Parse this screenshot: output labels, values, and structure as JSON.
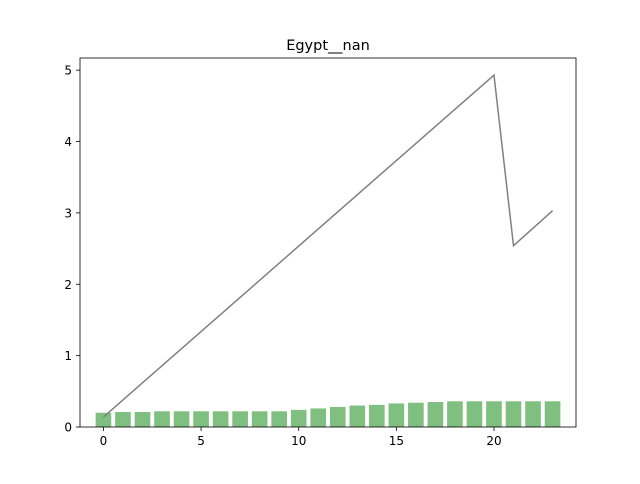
{
  "chart_data": {
    "type": "bar",
    "title": "Egypt__nan",
    "xlabel": "",
    "ylabel": "",
    "xlim": [
      -1.2,
      24.2
    ],
    "ylim": [
      0,
      5.17
    ],
    "x_ticks": [
      0,
      5,
      10,
      15,
      20
    ],
    "y_ticks": [
      0,
      1,
      2,
      3,
      4,
      5
    ],
    "grid": false,
    "series": [
      {
        "kind": "bar",
        "color": "#7fbf7f",
        "x": [
          0,
          1,
          2,
          3,
          4,
          5,
          6,
          7,
          8,
          9,
          10,
          11,
          12,
          13,
          14,
          15,
          16,
          17,
          18,
          19,
          20,
          21,
          22,
          23
        ],
        "values": [
          0.2,
          0.21,
          0.21,
          0.22,
          0.22,
          0.22,
          0.22,
          0.22,
          0.22,
          0.22,
          0.24,
          0.26,
          0.28,
          0.3,
          0.31,
          0.33,
          0.34,
          0.35,
          0.36,
          0.36,
          0.36,
          0.36,
          0.36,
          0.36
        ]
      },
      {
        "kind": "line",
        "color": "#808080",
        "x": [
          0,
          20,
          21,
          23
        ],
        "values": [
          0.14,
          4.93,
          2.54,
          3.03
        ]
      }
    ]
  }
}
